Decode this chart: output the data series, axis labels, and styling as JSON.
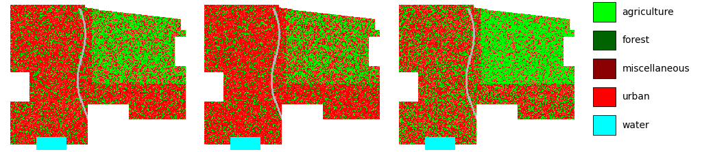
{
  "legend_items": [
    {
      "label": "agriculture",
      "color": "#00FF00"
    },
    {
      "label": "forest",
      "color": "#006400"
    },
    {
      "label": "miscellaneous",
      "color": "#8B0000"
    },
    {
      "label": "urban",
      "color": "#FF0000"
    },
    {
      "label": "water",
      "color": "#00FFFF"
    }
  ],
  "legend_fontsize": 10,
  "background_color": "#ffffff",
  "fig_width": 10.24,
  "fig_height": 2.23
}
